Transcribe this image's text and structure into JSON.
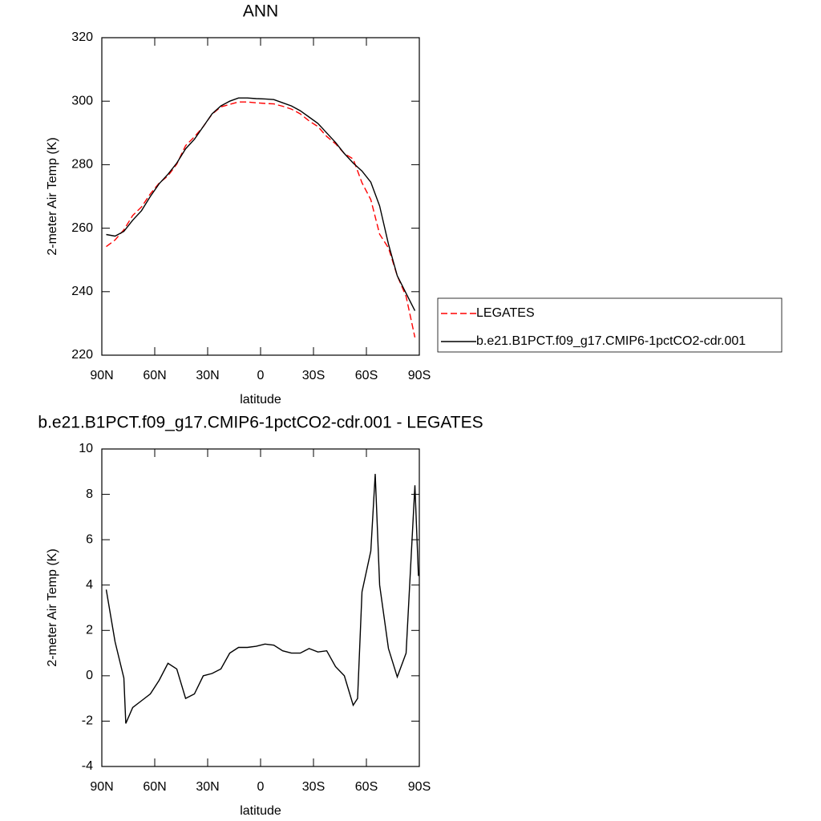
{
  "chart_data": [
    {
      "type": "line",
      "title": "ANN",
      "xlabel": "latitude",
      "ylabel": "2-meter Air Temp (K)",
      "x": [
        87.5,
        82.5,
        77.5,
        72.5,
        67.5,
        62.5,
        57.5,
        52.5,
        47.5,
        42.5,
        37.5,
        32.5,
        27.5,
        22.5,
        17.5,
        12.5,
        7.5,
        2.5,
        -2.5,
        -7.5,
        -12.5,
        -17.5,
        -22.5,
        -27.5,
        -32.5,
        -37.5,
        -42.5,
        -47.5,
        -52.5,
        -57.5,
        -62.5,
        -67.5,
        -72.5,
        -77.5,
        -82.5,
        -87.5
      ],
      "series": [
        {
          "name": "LEGATES",
          "color": "#ff0000",
          "linestyle": "dashed",
          "values": [
            254.2,
            256.3,
            259.5,
            264,
            266.7,
            270.8,
            274.2,
            276.5,
            280.2,
            286,
            288.8,
            292,
            295.9,
            298.2,
            299,
            299.75,
            299.75,
            299.5,
            299.3,
            299.15,
            298.4,
            297.5,
            296,
            293.8,
            292,
            288.9,
            286.6,
            283.5,
            281.8,
            274.3,
            269,
            258.1,
            253.8,
            245,
            238.5,
            225.6
          ]
        },
        {
          "name": "b.e21.B1PCT.f09_g17.CMIP6-1pctCO2-cdr.001",
          "color": "#000000",
          "linestyle": "solid",
          "values": [
            258,
            257.5,
            259,
            262.5,
            265.5,
            270,
            274,
            277,
            280.5,
            285,
            288,
            292,
            296,
            298.5,
            300,
            301,
            301,
            300.8,
            300.7,
            300.5,
            299.5,
            298.5,
            297,
            295,
            293,
            290,
            287,
            283.5,
            280.5,
            278,
            274.5,
            267,
            255,
            245,
            239.5,
            234
          ]
        }
      ],
      "xlim": [
        90,
        -90
      ],
      "xticks": [
        {
          "value": 90,
          "label": "90N"
        },
        {
          "value": 60,
          "label": "60N"
        },
        {
          "value": 30,
          "label": "30N"
        },
        0,
        {
          "value": -30,
          "label": "30S"
        },
        {
          "value": -60,
          "label": "60S"
        },
        {
          "value": -90,
          "label": "90S"
        }
      ],
      "ylim": [
        220,
        320
      ],
      "yticks": [
        220,
        240,
        260,
        280,
        300,
        320
      ],
      "legend": "right"
    },
    {
      "type": "line",
      "title": "b.e21.B1PCT.f09_g17.CMIP6-1pctCO2-cdr.001 - LEGATES",
      "xlabel": "latitude",
      "ylabel": "2-meter Air Temp (K)",
      "x": [
        87.5,
        82.5,
        77.5,
        76.4,
        72.5,
        67.5,
        62.5,
        57.5,
        52.5,
        47.5,
        42.5,
        37.5,
        32.5,
        27.5,
        22.5,
        17.5,
        12.5,
        7.5,
        2.5,
        -2.5,
        -7.5,
        -12.5,
        -17.5,
        -22.5,
        -27.5,
        -32.5,
        -37.5,
        -42.5,
        -47.5,
        -52.5,
        -55,
        -57.5,
        -62.5,
        -65,
        -67.5,
        -72.5,
        -77.5,
        -82.5,
        -87.5,
        -89.5
      ],
      "series": [
        {
          "color": "#000000",
          "linestyle": "solid",
          "values": [
            3.8,
            1.5,
            -0.1,
            -2.1,
            -1.4,
            -1.1,
            -0.8,
            -0.2,
            0.55,
            0.3,
            -1.0,
            -0.8,
            0.0,
            0.1,
            0.3,
            1.0,
            1.25,
            1.25,
            1.3,
            1.4,
            1.35,
            1.1,
            1.0,
            1.0,
            1.2,
            1.05,
            1.1,
            0.4,
            0.0,
            -1.3,
            -1.0,
            3.7,
            5.5,
            8.9,
            4.0,
            1.2,
            -0.05,
            1.0,
            8.4,
            4.4
          ]
        }
      ],
      "xlim": [
        90,
        -90
      ],
      "xticks": [
        {
          "value": 90,
          "label": "90N"
        },
        {
          "value": 60,
          "label": "60N"
        },
        {
          "value": 30,
          "label": "30N"
        },
        0,
        {
          "value": -30,
          "label": "30S"
        },
        {
          "value": -60,
          "label": "60S"
        },
        {
          "value": -90,
          "label": "90S"
        }
      ],
      "ylim": [
        -4,
        10
      ],
      "yticks": [
        -4,
        -2,
        0,
        2,
        4,
        6,
        8,
        10
      ]
    }
  ]
}
